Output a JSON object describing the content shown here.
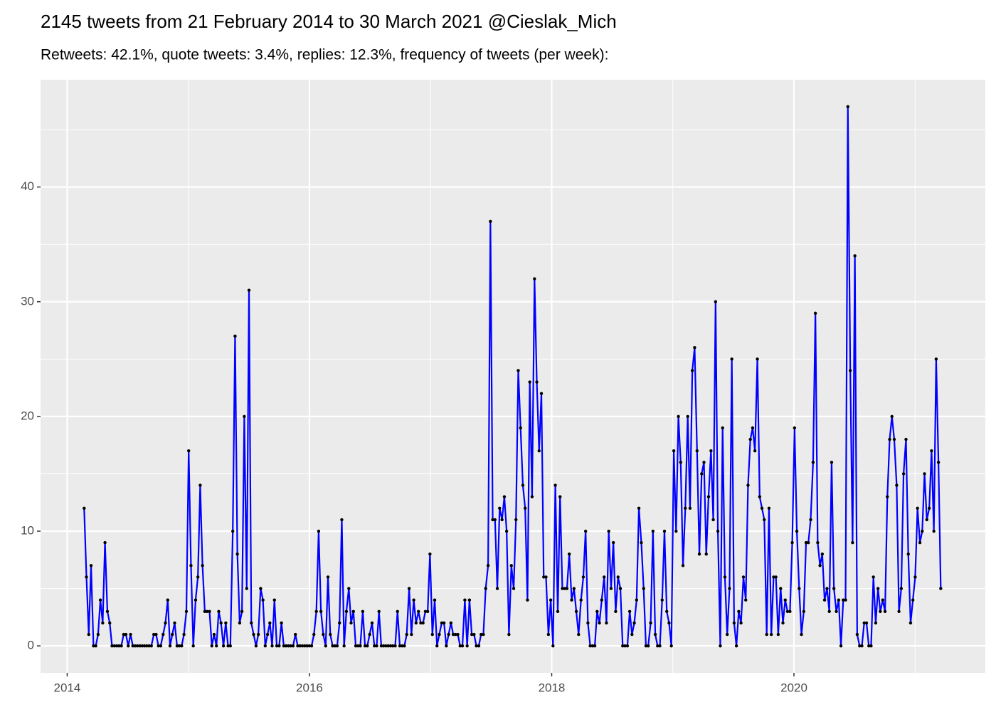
{
  "chart_data": {
    "type": "line",
    "title": "2145 tweets from 21 February 2014 to 30 March 2021 @Cieslak_Mich",
    "subtitle": "Retweets: 42.1%, quote tweets: 3.4%, replies: 12.3%, frequency of tweets (per week):",
    "x": [
      2014.14,
      2014.159,
      2014.178,
      2014.197,
      2014.217,
      2014.236,
      2014.255,
      2014.274,
      2014.293,
      2014.312,
      2014.332,
      2014.351,
      2014.37,
      2014.389,
      2014.409,
      2014.428,
      2014.447,
      2014.466,
      2014.485,
      2014.504,
      2014.523,
      2014.542,
      2014.561,
      2014.58,
      2014.6,
      2014.619,
      2014.638,
      2014.657,
      2014.676,
      2014.695,
      2014.715,
      2014.734,
      2014.753,
      2014.772,
      2014.792,
      2014.811,
      2014.83,
      2014.849,
      2014.868,
      2014.887,
      2014.907,
      2014.926,
      2014.945,
      2014.964,
      2014.984,
      2015.003,
      2015.022,
      2015.041,
      2015.06,
      2015.079,
      2015.098,
      2015.117,
      2015.136,
      2015.155,
      2015.175,
      2015.194,
      2015.213,
      2015.232,
      2015.251,
      2015.27,
      2015.29,
      2015.309,
      2015.328,
      2015.347,
      2015.367,
      2015.386,
      2015.405,
      2015.424,
      2015.443,
      2015.462,
      2015.482,
      2015.501,
      2015.52,
      2015.539,
      2015.559,
      2015.578,
      2015.597,
      2015.616,
      2015.635,
      2015.654,
      2015.673,
      2015.692,
      2015.711,
      2015.73,
      2015.75,
      2015.769,
      2015.788,
      2015.807,
      2015.826,
      2015.845,
      2015.865,
      2015.884,
      2015.903,
      2015.922,
      2015.942,
      2015.961,
      2015.98,
      2015.999,
      2016.018,
      2016.037,
      2016.057,
      2016.076,
      2016.095,
      2016.114,
      2016.134,
      2016.153,
      2016.172,
      2016.191,
      2016.21,
      2016.229,
      2016.248,
      2016.267,
      2016.286,
      2016.305,
      2016.325,
      2016.344,
      2016.363,
      2016.382,
      2016.401,
      2016.42,
      2016.44,
      2016.459,
      2016.478,
      2016.497,
      2016.517,
      2016.536,
      2016.555,
      2016.574,
      2016.593,
      2016.612,
      2016.631,
      2016.65,
      2016.669,
      2016.688,
      2016.708,
      2016.727,
      2016.746,
      2016.765,
      2016.784,
      2016.803,
      2016.823,
      2016.842,
      2016.861,
      2016.88,
      2016.9,
      2016.919,
      2016.938,
      2016.957,
      2016.976,
      2016.995,
      2017.015,
      2017.034,
      2017.053,
      2017.072,
      2017.092,
      2017.111,
      2017.13,
      2017.149,
      2017.168,
      2017.187,
      2017.206,
      2017.225,
      2017.244,
      2017.263,
      2017.283,
      2017.302,
      2017.321,
      2017.34,
      2017.359,
      2017.378,
      2017.398,
      2017.417,
      2017.436,
      2017.455,
      2017.475,
      2017.494,
      2017.513,
      2017.532,
      2017.551,
      2017.57,
      2017.59,
      2017.609,
      2017.628,
      2017.647,
      2017.667,
      2017.686,
      2017.705,
      2017.724,
      2017.743,
      2017.762,
      2017.781,
      2017.8,
      2017.819,
      2017.838,
      2017.858,
      2017.877,
      2017.896,
      2017.915,
      2017.934,
      2017.953,
      2017.973,
      2017.992,
      2018.011,
      2018.03,
      2018.05,
      2018.069,
      2018.088,
      2018.107,
      2018.126,
      2018.145,
      2018.165,
      2018.184,
      2018.203,
      2018.222,
      2018.242,
      2018.261,
      2018.28,
      2018.299,
      2018.318,
      2018.337,
      2018.356,
      2018.375,
      2018.394,
      2018.413,
      2018.433,
      2018.452,
      2018.471,
      2018.49,
      2018.509,
      2018.528,
      2018.548,
      2018.567,
      2018.586,
      2018.605,
      2018.625,
      2018.644,
      2018.663,
      2018.682,
      2018.701,
      2018.72,
      2018.74,
      2018.759,
      2018.778,
      2018.797,
      2018.817,
      2018.836,
      2018.855,
      2018.874,
      2018.893,
      2018.912,
      2018.931,
      2018.95,
      2018.969,
      2018.988,
      2019.008,
      2019.027,
      2019.046,
      2019.065,
      2019.084,
      2019.103,
      2019.123,
      2019.142,
      2019.161,
      2019.18,
      2019.2,
      2019.219,
      2019.238,
      2019.257,
      2019.276,
      2019.295,
      2019.315,
      2019.334,
      2019.353,
      2019.372,
      2019.392,
      2019.411,
      2019.43,
      2019.449,
      2019.468,
      2019.487,
      2019.506,
      2019.525,
      2019.544,
      2019.563,
      2019.583,
      2019.602,
      2019.621,
      2019.64,
      2019.659,
      2019.678,
      2019.698,
      2019.717,
      2019.736,
      2019.755,
      2019.775,
      2019.794,
      2019.813,
      2019.832,
      2019.851,
      2019.87,
      2019.89,
      2019.909,
      2019.928,
      2019.947,
      2019.967,
      2019.986,
      2020.005,
      2020.024,
      2020.043,
      2020.062,
      2020.081,
      2020.1,
      2020.119,
      2020.138,
      2020.158,
      2020.177,
      2020.196,
      2020.215,
      2020.234,
      2020.253,
      2020.273,
      2020.292,
      2020.311,
      2020.33,
      2020.35,
      2020.369,
      2020.388,
      2020.407,
      2020.426,
      2020.445,
      2020.465,
      2020.484,
      2020.503,
      2020.522,
      2020.542,
      2020.561,
      2020.58,
      2020.599,
      2020.618,
      2020.637,
      2020.656,
      2020.675,
      2020.694,
      2020.713,
      2020.733,
      2020.752,
      2020.771,
      2020.79,
      2020.809,
      2020.828,
      2020.848,
      2020.867,
      2020.886,
      2020.905,
      2020.925,
      2020.944,
      2020.963,
      2020.982,
      2021.001,
      2021.02,
      2021.04,
      2021.059,
      2021.078,
      2021.097,
      2021.117,
      2021.136,
      2021.155,
      2021.174,
      2021.193,
      2021.212
    ],
    "series": [
      {
        "color": "#0000ff",
        "point_color": "#000000",
        "values": [
          12,
          6,
          1,
          7,
          0,
          0,
          1,
          4,
          2,
          9,
          3,
          2,
          0,
          0,
          0,
          0,
          0,
          1,
          1,
          0,
          1,
          0,
          0,
          0,
          0,
          0,
          0,
          0,
          0,
          0,
          1,
          1,
          0,
          0,
          1,
          2,
          4,
          0,
          1,
          2,
          0,
          0,
          0,
          1,
          3,
          17,
          7,
          0,
          4,
          6,
          14,
          7,
          3,
          3,
          3,
          0,
          1,
          0,
          3,
          2,
          0,
          2,
          0,
          0,
          10,
          27,
          8,
          2,
          3,
          20,
          5,
          31,
          2,
          1,
          0,
          1,
          5,
          4,
          0,
          1,
          2,
          0,
          4,
          0,
          0,
          2,
          0,
          0,
          0,
          0,
          0,
          1,
          0,
          0,
          0,
          0,
          0,
          0,
          0,
          1,
          3,
          10,
          3,
          1,
          0,
          6,
          1,
          0,
          0,
          0,
          2,
          11,
          0,
          3,
          5,
          2,
          3,
          0,
          0,
          0,
          3,
          0,
          0,
          1,
          2,
          0,
          0,
          3,
          0,
          0,
          0,
          0,
          0,
          0,
          0,
          3,
          0,
          0,
          0,
          1,
          5,
          1,
          4,
          2,
          3,
          2,
          2,
          3,
          3,
          8,
          1,
          4,
          0,
          1,
          2,
          2,
          0,
          1,
          2,
          1,
          1,
          1,
          0,
          0,
          4,
          0,
          4,
          1,
          1,
          0,
          0,
          1,
          1,
          5,
          7,
          37,
          11,
          11,
          5,
          12,
          11,
          13,
          10,
          1,
          7,
          5,
          11,
          24,
          19,
          14,
          12,
          4,
          23,
          13,
          32,
          23,
          17,
          22,
          6,
          6,
          1,
          4,
          0,
          14,
          3,
          13,
          5,
          5,
          5,
          8,
          4,
          5,
          3,
          1,
          4,
          6,
          10,
          2,
          0,
          0,
          0,
          3,
          2,
          4,
          6,
          2,
          10,
          5,
          9,
          3,
          6,
          5,
          0,
          0,
          0,
          3,
          1,
          2,
          4,
          12,
          9,
          5,
          0,
          0,
          2,
          10,
          1,
          0,
          0,
          4,
          10,
          3,
          2,
          0,
          17,
          10,
          20,
          16,
          7,
          12,
          20,
          12,
          24,
          26,
          17,
          8,
          15,
          16,
          8,
          13,
          17,
          11,
          30,
          10,
          0,
          19,
          6,
          1,
          5,
          25,
          2,
          0,
          3,
          2,
          6,
          4,
          14,
          18,
          19,
          17,
          25,
          13,
          12,
          11,
          1,
          12,
          1,
          6,
          6,
          1,
          5,
          2,
          4,
          3,
          3,
          9,
          19,
          10,
          5,
          1,
          3,
          9,
          9,
          11,
          16,
          29,
          9,
          7,
          8,
          4,
          5,
          3,
          16,
          5,
          3,
          4,
          0,
          4,
          4,
          47,
          24,
          9,
          34,
          1,
          0,
          0,
          2,
          2,
          0,
          0,
          6,
          2,
          5,
          3,
          4,
          3,
          13,
          18,
          20,
          18,
          14,
          3,
          5,
          15,
          18,
          8,
          2,
          4,
          6,
          12,
          9,
          10,
          15,
          11,
          12,
          17,
          10,
          25,
          16,
          5
        ]
      }
    ],
    "xlim": [
      2013.78,
      2021.58
    ],
    "xticks": [
      2014,
      2016,
      2018,
      2020
    ],
    "ylim": [
      -2.35,
      49.35
    ],
    "yticks": [
      0,
      10,
      20,
      30,
      40
    ],
    "grid": true
  }
}
